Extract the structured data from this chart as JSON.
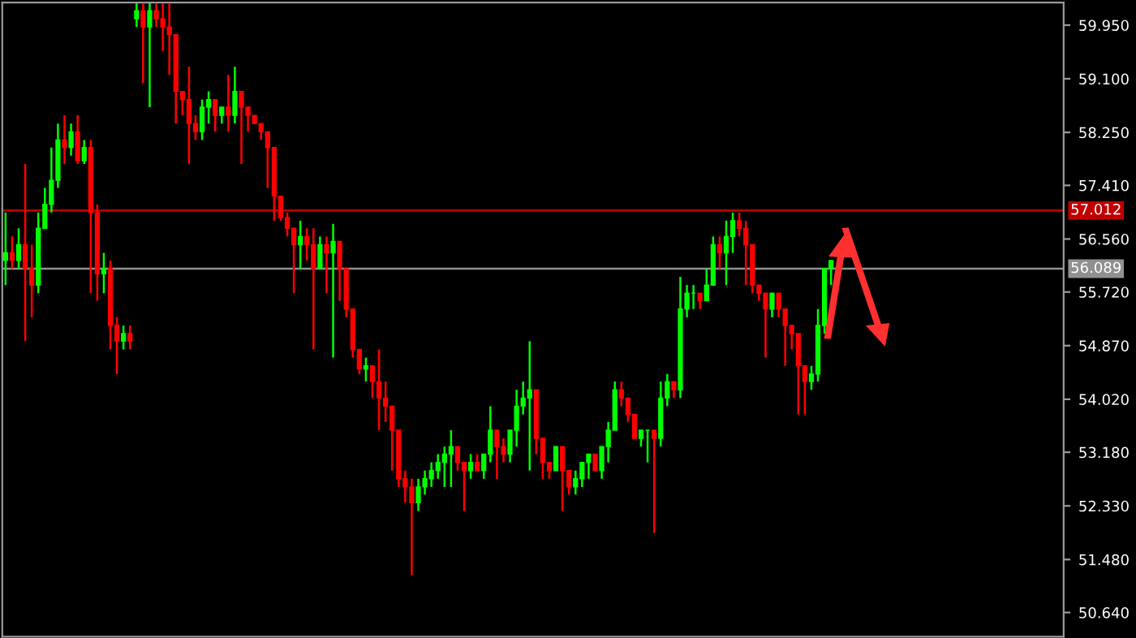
{
  "chart_data": {
    "type": "candlestick",
    "categories": [
      null,
      null,
      null,
      null,
      null,
      null,
      null,
      null,
      null,
      null,
      null,
      null,
      null,
      null,
      null,
      null,
      null,
      null,
      null,
      null,
      null,
      null,
      null,
      null,
      null,
      null,
      null,
      null,
      null,
      null,
      null,
      null,
      null,
      null,
      null,
      null,
      null,
      null,
      null,
      null,
      null,
      null,
      null,
      null,
      null,
      null,
      null,
      null,
      null,
      null,
      null,
      null,
      null,
      null,
      null,
      null,
      null,
      null,
      null,
      null,
      null,
      null,
      null,
      null,
      null,
      null,
      null,
      null,
      null,
      null,
      null,
      null,
      null,
      null,
      null,
      null,
      null,
      null,
      null,
      null,
      null,
      null,
      null,
      null,
      null,
      null,
      null,
      null,
      null,
      null,
      null,
      null,
      null,
      null,
      null,
      null,
      null,
      null,
      null,
      null,
      null,
      null,
      null,
      null,
      null,
      null,
      null,
      null,
      null,
      null,
      null,
      null,
      null,
      null,
      null,
      null,
      null,
      null,
      null,
      null,
      null,
      null,
      null,
      null,
      null,
      null,
      null,
      null,
      null,
      null,
      null,
      null,
      null,
      null,
      null,
      null,
      null,
      null,
      null,
      null,
      null,
      null,
      null,
      null,
      null,
      null,
      null,
      null,
      null,
      null,
      null,
      null,
      null,
      null,
      null,
      null,
      null,
      null,
      null,
      null,
      null,
      null
    ],
    "ohlc": [
      [
        56.22,
        56.98,
        55.83,
        56.34
      ],
      [
        56.34,
        56.6,
        56.09,
        56.22
      ],
      [
        56.22,
        56.73,
        56.09,
        56.47
      ],
      [
        56.47,
        57.75,
        54.94,
        56.09
      ],
      [
        56.09,
        56.47,
        55.32,
        55.83
      ],
      [
        55.83,
        56.98,
        55.7,
        56.73
      ],
      [
        56.73,
        57.37,
        56.73,
        57.11
      ],
      [
        57.11,
        58.01,
        56.98,
        57.49
      ],
      [
        57.49,
        58.39,
        57.37,
        58.13
      ],
      [
        58.13,
        58.52,
        57.75,
        58.01
      ],
      [
        58.01,
        58.39,
        57.88,
        58.26
      ],
      [
        58.26,
        58.52,
        57.75,
        57.8
      ],
      [
        57.8,
        58.13,
        57.75,
        58.01
      ],
      [
        58.01,
        58.13,
        55.7,
        56.98
      ],
      [
        56.98,
        57.11,
        55.58,
        56.01
      ],
      [
        56.01,
        56.34,
        55.7,
        56.09
      ],
      [
        56.09,
        56.22,
        54.81,
        55.19
      ],
      [
        55.19,
        55.32,
        54.42,
        54.94
      ],
      [
        54.94,
        55.19,
        54.81,
        55.06
      ],
      [
        55.06,
        55.19,
        54.81,
        54.94
      ],
      [
        60.05,
        60.3,
        59.92,
        60.18
      ],
      [
        60.18,
        60.3,
        59.03,
        59.92
      ],
      [
        59.92,
        60.3,
        58.65,
        60.18
      ],
      [
        60.18,
        60.3,
        59.92,
        60.05
      ],
      [
        60.05,
        60.3,
        59.54,
        59.92
      ],
      [
        59.92,
        60.3,
        59.16,
        59.8
      ],
      [
        59.8,
        59.8,
        58.39,
        58.9
      ],
      [
        58.9,
        58.9,
        58.52,
        58.77
      ],
      [
        58.77,
        59.29,
        57.75,
        58.39
      ],
      [
        58.39,
        58.52,
        58.13,
        58.26
      ],
      [
        58.26,
        58.77,
        58.13,
        58.65
      ],
      [
        58.65,
        58.9,
        58.39,
        58.77
      ],
      [
        58.77,
        58.77,
        58.26,
        58.52
      ],
      [
        58.52,
        58.65,
        58.39,
        58.65
      ],
      [
        58.65,
        59.16,
        58.26,
        58.52
      ],
      [
        58.52,
        59.29,
        58.39,
        58.9
      ],
      [
        58.9,
        58.9,
        57.75,
        58.65
      ],
      [
        58.65,
        58.65,
        58.26,
        58.52
      ],
      [
        58.52,
        58.52,
        58.39,
        58.39
      ],
      [
        58.39,
        58.39,
        58.13,
        58.26
      ],
      [
        58.26,
        58.26,
        57.37,
        58.01
      ],
      [
        58.01,
        58.01,
        56.85,
        57.24
      ],
      [
        57.24,
        57.24,
        56.85,
        56.9
      ],
      [
        56.9,
        56.98,
        56.6,
        56.73
      ],
      [
        56.73,
        56.73,
        55.7,
        56.47
      ],
      [
        56.47,
        56.85,
        56.09,
        56.6
      ],
      [
        56.6,
        56.73,
        56.22,
        56.47
      ],
      [
        56.47,
        56.73,
        54.81,
        56.09
      ],
      [
        56.09,
        56.6,
        56.09,
        56.47
      ],
      [
        56.47,
        56.6,
        55.7,
        56.34
      ],
      [
        56.34,
        56.8,
        54.68,
        56.52
      ],
      [
        56.52,
        56.52,
        55.58,
        56.09
      ],
      [
        56.09,
        56.09,
        55.32,
        55.45
      ],
      [
        55.45,
        55.45,
        54.68,
        54.81
      ],
      [
        54.81,
        54.81,
        54.42,
        54.5
      ],
      [
        54.5,
        54.68,
        54.3,
        54.55
      ],
      [
        54.55,
        54.55,
        54.04,
        54.3
      ],
      [
        54.3,
        54.81,
        53.53,
        54.04
      ],
      [
        54.04,
        54.3,
        53.66,
        53.91
      ],
      [
        53.91,
        53.91,
        52.89,
        53.53
      ],
      [
        53.53,
        53.53,
        52.63,
        52.76
      ],
      [
        52.76,
        52.89,
        52.38,
        52.63
      ],
      [
        52.63,
        52.76,
        51.23,
        52.38
      ],
      [
        52.38,
        52.76,
        52.25,
        52.63
      ],
      [
        52.63,
        52.89,
        52.51,
        52.76
      ],
      [
        52.76,
        53.02,
        52.63,
        52.89
      ],
      [
        52.89,
        53.15,
        52.76,
        53.02
      ],
      [
        53.02,
        53.27,
        52.63,
        53.15
      ],
      [
        53.15,
        53.53,
        52.63,
        53.27
      ],
      [
        53.27,
        53.27,
        52.89,
        53.02
      ],
      [
        53.02,
        53.02,
        52.25,
        52.89
      ],
      [
        52.89,
        53.15,
        52.76,
        53.02
      ],
      [
        53.02,
        53.15,
        52.89,
        52.89
      ],
      [
        52.89,
        53.15,
        52.76,
        53.15
      ],
      [
        53.15,
        53.91,
        53.02,
        53.53
      ],
      [
        53.53,
        53.53,
        52.76,
        53.27
      ],
      [
        53.27,
        53.4,
        53.02,
        53.15
      ],
      [
        53.15,
        53.53,
        53.02,
        53.53
      ],
      [
        53.53,
        54.17,
        53.27,
        53.91
      ],
      [
        53.91,
        54.3,
        53.78,
        54.04
      ],
      [
        54.04,
        54.94,
        52.89,
        54.17
      ],
      [
        54.17,
        54.17,
        53.15,
        53.4
      ],
      [
        53.4,
        53.4,
        52.76,
        53.02
      ],
      [
        53.02,
        53.02,
        52.76,
        52.89
      ],
      [
        52.89,
        53.27,
        52.89,
        53.27
      ],
      [
        53.27,
        53.27,
        52.25,
        52.89
      ],
      [
        52.89,
        52.89,
        52.51,
        52.63
      ],
      [
        52.63,
        52.89,
        52.51,
        52.76
      ],
      [
        52.76,
        53.02,
        52.63,
        53.02
      ],
      [
        53.02,
        53.15,
        52.76,
        53.15
      ],
      [
        53.15,
        53.15,
        52.89,
        52.89
      ],
      [
        52.89,
        53.27,
        52.76,
        53.27
      ],
      [
        53.27,
        53.66,
        53.02,
        53.53
      ],
      [
        53.53,
        54.3,
        53.53,
        54.17
      ],
      [
        54.17,
        54.3,
        53.91,
        54.04
      ],
      [
        54.04,
        54.04,
        53.66,
        53.78
      ],
      [
        53.78,
        53.78,
        53.4,
        53.4
      ],
      [
        53.4,
        53.53,
        53.27,
        53.53
      ],
      [
        53.53,
        53.53,
        53.02,
        53.53
      ],
      [
        53.53,
        53.53,
        51.9,
        53.4
      ],
      [
        53.4,
        54.3,
        53.27,
        54.04
      ],
      [
        54.04,
        54.42,
        53.91,
        54.3
      ],
      [
        54.3,
        54.3,
        54.04,
        54.17
      ],
      [
        54.17,
        55.96,
        54.04,
        55.45
      ],
      [
        55.45,
        55.83,
        55.32,
        55.7
      ],
      [
        55.7,
        55.83,
        55.45,
        55.7
      ],
      [
        55.7,
        55.7,
        55.45,
        55.58
      ],
      [
        55.58,
        56.09,
        55.58,
        55.83
      ],
      [
        55.83,
        56.6,
        55.83,
        56.47
      ],
      [
        56.47,
        56.6,
        56.09,
        56.34
      ],
      [
        56.34,
        56.85,
        55.83,
        56.6
      ],
      [
        56.6,
        56.98,
        56.34,
        56.85
      ],
      [
        56.85,
        56.98,
        56.6,
        56.73
      ],
      [
        56.73,
        56.85,
        55.83,
        56.47
      ],
      [
        56.47,
        56.47,
        55.7,
        55.83
      ],
      [
        55.83,
        55.83,
        55.58,
        55.7
      ],
      [
        55.7,
        55.7,
        54.68,
        55.45
      ],
      [
        55.45,
        55.7,
        55.32,
        55.7
      ],
      [
        55.7,
        55.7,
        55.32,
        55.45
      ],
      [
        55.45,
        55.45,
        54.55,
        55.19
      ],
      [
        55.19,
        55.19,
        54.81,
        55.06
      ],
      [
        55.06,
        55.06,
        53.78,
        54.55
      ],
      [
        54.55,
        54.55,
        53.78,
        54.3
      ],
      [
        54.3,
        54.55,
        54.17,
        54.42
      ],
      [
        54.42,
        55.45,
        54.3,
        55.19
      ],
      [
        55.19,
        56.09,
        55.06,
        56.09
      ],
      [
        56.09,
        56.22,
        55.83,
        56.22
      ],
      null,
      null,
      null,
      null,
      null,
      null,
      null,
      null,
      null,
      null,
      null,
      null,
      null,
      null,
      null,
      null,
      null,
      null,
      null,
      null,
      null,
      null,
      null,
      null,
      null,
      null,
      null,
      null,
      null,
      null,
      null,
      null,
      null,
      null,
      null
    ],
    "colors": [
      "#00ff00",
      "#ff0000",
      "#00ff00",
      "#ff0000",
      "#ff0000",
      "#00ff00",
      "#00ff00",
      "#00ff00",
      "#00ff00",
      "#ff0000",
      "#00ff00",
      "#ff0000",
      "#00ff00",
      "#ff0000",
      "#ff0000",
      "#00ff00",
      "#ff0000",
      "#ff0000",
      "#00ff00",
      "#ff0000",
      "#00ff00",
      "#ff0000",
      "#00ff00",
      "#ff0000",
      "#ff0000",
      "#ff0000",
      "#ff0000",
      "#ff0000",
      "#ff0000",
      "#ff0000",
      "#00ff00",
      "#00ff00",
      "#ff0000",
      "#00ff00",
      "#ff0000",
      "#00ff00",
      "#ff0000",
      "#ff0000",
      "#ff0000",
      "#ff0000",
      "#ff0000",
      "#ff0000",
      "#ff0000",
      "#ff0000",
      "#ff0000",
      "#00ff00",
      "#ff0000",
      "#ff0000",
      "#00ff00",
      "#ff0000",
      "#00ff00",
      "#ff0000",
      "#ff0000",
      "#ff0000",
      "#ff0000",
      "#00ff00",
      "#ff0000",
      "#ff0000",
      "#ff0000",
      "#ff0000",
      "#ff0000",
      "#ff0000",
      "#ff0000",
      "#00ff00",
      "#00ff00",
      "#00ff00",
      "#00ff00",
      "#00ff00",
      "#00ff00",
      "#ff0000",
      "#ff0000",
      "#00ff00",
      "#ff0000",
      "#00ff00",
      "#00ff00",
      "#ff0000",
      "#ff0000",
      "#00ff00",
      "#00ff00",
      "#00ff00",
      "#00ff00",
      "#ff0000",
      "#ff0000",
      "#ff0000",
      "#00ff00",
      "#ff0000",
      "#ff0000",
      "#00ff00",
      "#00ff00",
      "#00ff00",
      "#ff0000",
      "#00ff00",
      "#00ff00",
      "#00ff00",
      "#ff0000",
      "#ff0000",
      "#ff0000",
      "#00ff00",
      "#00ff00",
      "#ff0000",
      "#00ff00",
      "#00ff00",
      "#ff0000",
      "#00ff00",
      "#00ff00",
      "#00ff00",
      "#ff0000",
      "#00ff00",
      "#00ff00",
      "#ff0000",
      "#00ff00",
      "#00ff00",
      "#ff0000",
      "#ff0000",
      "#ff0000",
      "#ff0000",
      "#ff0000",
      "#00ff00",
      "#ff0000",
      "#ff0000",
      "#ff0000",
      "#ff0000",
      "#ff0000",
      "#00ff00",
      "#00ff00",
      "#00ff00",
      "#00ff00",
      null,
      null,
      null,
      null,
      null,
      null,
      null,
      null,
      null,
      null,
      null,
      null,
      null,
      null,
      null,
      null,
      null,
      null,
      null,
      null,
      null,
      null,
      null,
      null,
      null,
      null,
      null,
      null,
      null,
      null,
      null,
      null,
      null,
      null,
      null
    ],
    "ylim": [
      50.256,
      60.308
    ],
    "yticks": [
      {
        "value": 50.64,
        "label": "50.640"
      },
      {
        "value": 51.48,
        "label": "51.480"
      },
      {
        "value": 52.33,
        "label": "52.330"
      },
      {
        "value": 53.18,
        "label": "53.180"
      },
      {
        "value": 54.02,
        "label": "54.020"
      },
      {
        "value": 54.87,
        "label": "54.870"
      },
      {
        "value": 55.72,
        "label": "55.720"
      },
      {
        "value": 56.56,
        "label": "56.560"
      },
      {
        "value": 57.41,
        "label": "57.410"
      },
      {
        "value": 58.25,
        "label": "58.250"
      },
      {
        "value": 59.1,
        "label": "59.100"
      },
      {
        "value": 59.95,
        "label": "59.950"
      }
    ],
    "ref_lines": [
      {
        "axis": "y",
        "value": 57.012,
        "label": "57.012",
        "color": "#c00000"
      },
      {
        "axis": "y",
        "value": 56.089,
        "label": "56.089",
        "color": "#909090"
      }
    ],
    "tick_labels": "y",
    "grid": false
  }
}
